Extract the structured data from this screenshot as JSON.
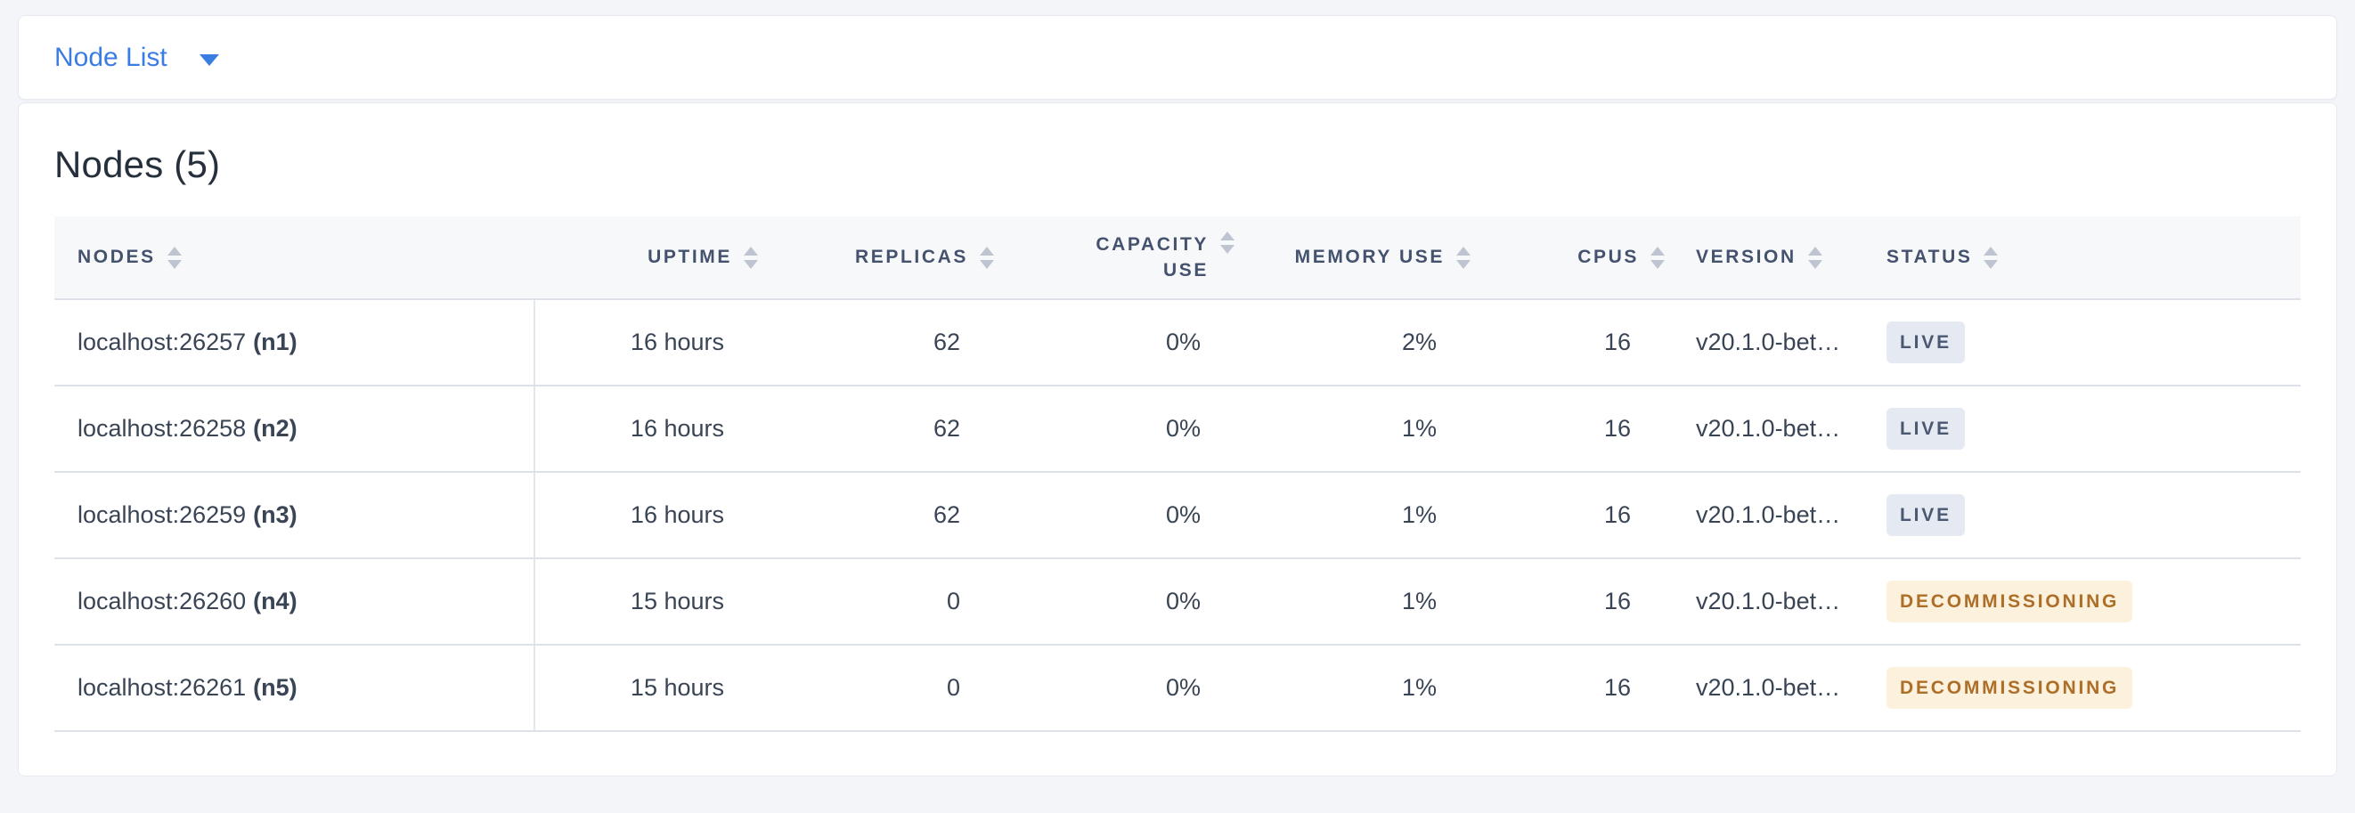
{
  "colors": {
    "accent_blue": "#3a7de2",
    "page_background": "#f3f5f9",
    "header_text": "#44526e",
    "cell_text": "#394455",
    "live_badge_bg": "#e5eaf2",
    "live_badge_text": "#4a5872",
    "decommissioning_badge_bg": "#fbf1dd",
    "decommissioning_badge_text": "#ad6e28"
  },
  "toolbar": {
    "view_selector_label": "Node List",
    "caret_icon": "caret-down"
  },
  "panel": {
    "title": "Nodes (5)"
  },
  "table": {
    "columns": [
      {
        "key": "nodes",
        "label": "NODES",
        "sort_icon": "sort-arrows"
      },
      {
        "key": "uptime",
        "label": "UPTIME",
        "sort_icon": "sort-arrows"
      },
      {
        "key": "replicas",
        "label": "REPLICAS",
        "sort_icon": "sort-arrows"
      },
      {
        "key": "capacity_use",
        "label": "CAPACITY USE",
        "sort_icon": "sort-arrows"
      },
      {
        "key": "memory_use",
        "label": "MEMORY USE",
        "sort_icon": "sort-arrows"
      },
      {
        "key": "cpus",
        "label": "CPUS",
        "sort_icon": "sort-arrows"
      },
      {
        "key": "version",
        "label": "VERSION",
        "sort_icon": "sort-arrows"
      },
      {
        "key": "status",
        "label": "STATUS",
        "sort_icon": "sort-arrows"
      }
    ],
    "rows": [
      {
        "address": "localhost:26257",
        "node_id": "(n1)",
        "uptime": "16 hours",
        "replicas": "62",
        "capacity_use": "0%",
        "memory_use": "2%",
        "cpus": "16",
        "version": "v20.1.0-bet…",
        "status": "LIVE",
        "status_type": "live"
      },
      {
        "address": "localhost:26258",
        "node_id": "(n2)",
        "uptime": "16 hours",
        "replicas": "62",
        "capacity_use": "0%",
        "memory_use": "1%",
        "cpus": "16",
        "version": "v20.1.0-bet…",
        "status": "LIVE",
        "status_type": "live"
      },
      {
        "address": "localhost:26259",
        "node_id": "(n3)",
        "uptime": "16 hours",
        "replicas": "62",
        "capacity_use": "0%",
        "memory_use": "1%",
        "cpus": "16",
        "version": "v20.1.0-bet…",
        "status": "LIVE",
        "status_type": "live"
      },
      {
        "address": "localhost:26260",
        "node_id": "(n4)",
        "uptime": "15 hours",
        "replicas": "0",
        "capacity_use": "0%",
        "memory_use": "1%",
        "cpus": "16",
        "version": "v20.1.0-bet…",
        "status": "DECOMMISSIONING",
        "status_type": "decommissioning"
      },
      {
        "address": "localhost:26261",
        "node_id": "(n5)",
        "uptime": "15 hours",
        "replicas": "0",
        "capacity_use": "0%",
        "memory_use": "1%",
        "cpus": "16",
        "version": "v20.1.0-bet…",
        "status": "DECOMMISSIONING",
        "status_type": "decommissioning"
      }
    ]
  }
}
